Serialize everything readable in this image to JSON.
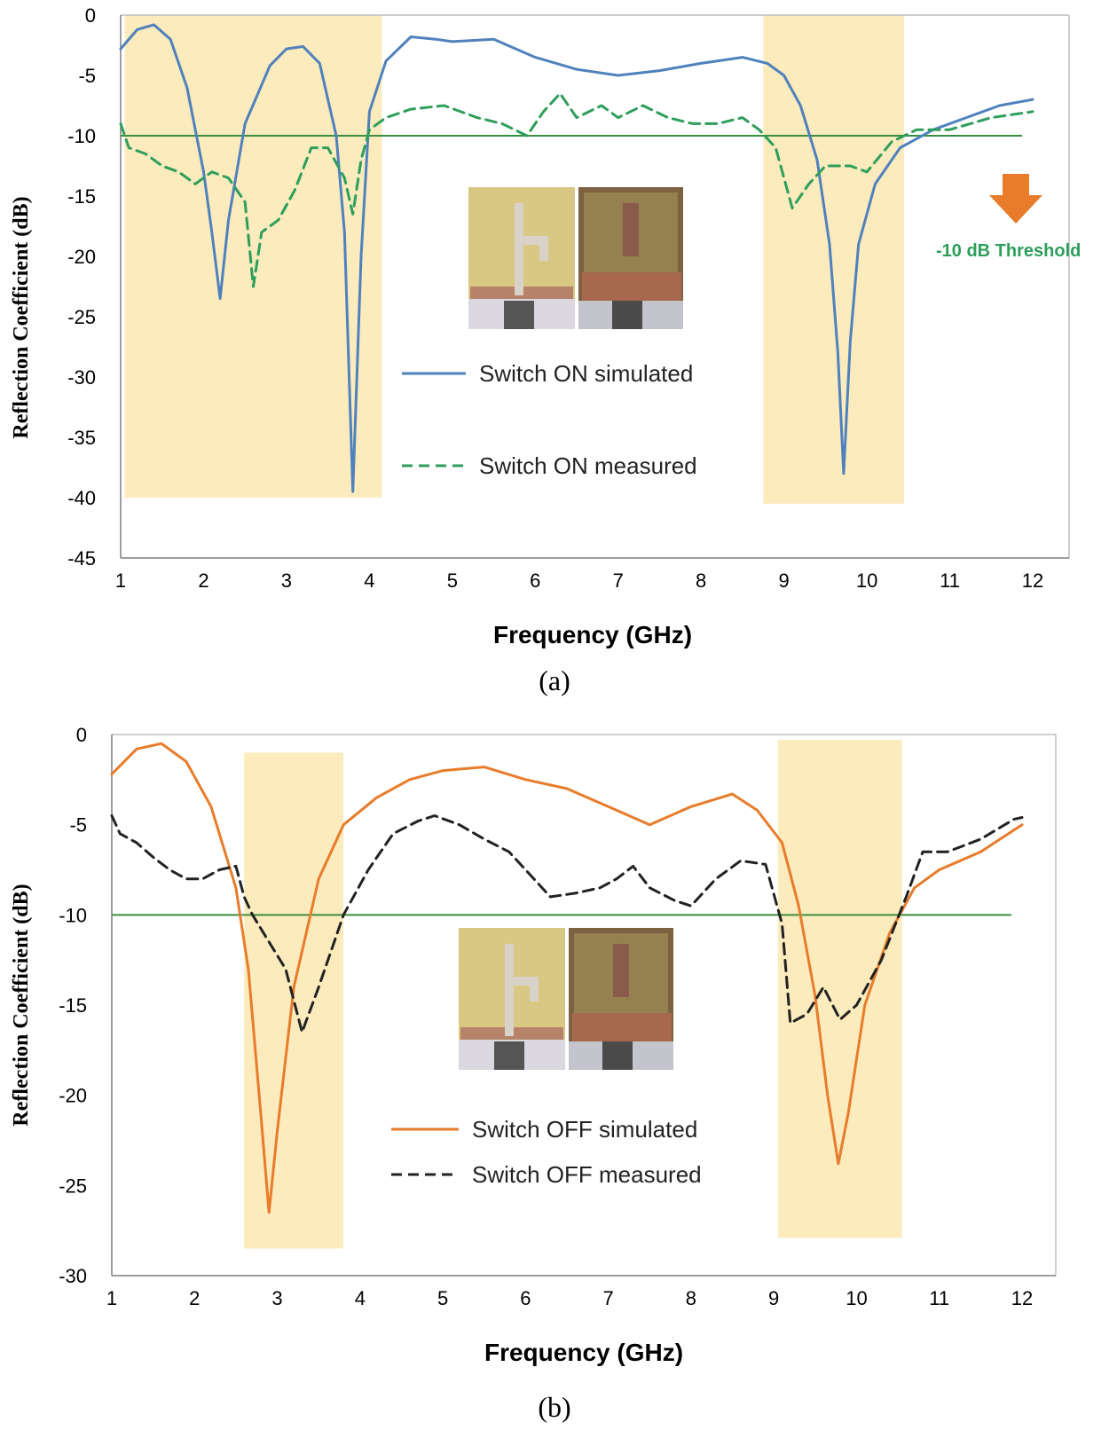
{
  "chart_data": [
    {
      "type": "line",
      "panel": "(a)",
      "xlabel": "Frequency (GHz)",
      "ylabel": "Reflection Coefficient (dB)",
      "xlim": [
        1,
        12
      ],
      "ylim": [
        -45,
        0
      ],
      "xticks": [
        1,
        2,
        3,
        4,
        5,
        6,
        7,
        8,
        9,
        10,
        11,
        12
      ],
      "yticks": [
        0,
        -5,
        -10,
        -15,
        -20,
        -25,
        -30,
        -35,
        -40,
        -45
      ],
      "threshold": -10,
      "threshold_label": "-10 dB Threshold",
      "bands": [
        {
          "x0": 1.05,
          "x1": 4.15,
          "y0": 0,
          "y1": -40
        },
        {
          "x0": 8.75,
          "x1": 10.45,
          "y0": 0,
          "y1": -40.5
        }
      ],
      "series": [
        {
          "name": "Switch ON simulated",
          "color": "#4f81bd",
          "dash": "solid",
          "x": [
            1.0,
            1.2,
            1.4,
            1.6,
            1.8,
            2.0,
            2.1,
            2.2,
            2.3,
            2.5,
            2.8,
            3.0,
            3.2,
            3.4,
            3.6,
            3.7,
            3.8,
            3.9,
            4.0,
            4.2,
            4.5,
            4.8,
            5.0,
            5.5,
            6.0,
            6.5,
            7.0,
            7.5,
            8.0,
            8.5,
            8.8,
            9.0,
            9.2,
            9.4,
            9.55,
            9.65,
            9.72,
            9.8,
            9.9,
            10.1,
            10.4,
            10.8,
            11.2,
            11.6,
            12.0
          ],
          "y": [
            -2.8,
            -1.2,
            -0.8,
            -2.0,
            -6.0,
            -13.0,
            -18.0,
            -23.5,
            -17.0,
            -9.0,
            -4.2,
            -2.8,
            -2.6,
            -4.0,
            -10.0,
            -18.0,
            -39.5,
            -20.0,
            -8.0,
            -3.8,
            -1.8,
            -2.0,
            -2.2,
            -2.0,
            -3.5,
            -4.5,
            -5.0,
            -4.6,
            -4.0,
            -3.5,
            -4.0,
            -5.0,
            -7.5,
            -12.0,
            -19.0,
            -28.0,
            -38.0,
            -27.0,
            -19.0,
            -14.0,
            -11.0,
            -9.5,
            -8.5,
            -7.5,
            -7.0
          ]
        },
        {
          "name": "Switch ON measured",
          "color": "#2e9e5b",
          "dash": "dashed",
          "x": [
            1.0,
            1.1,
            1.3,
            1.5,
            1.7,
            1.9,
            2.1,
            2.3,
            2.5,
            2.6,
            2.7,
            2.9,
            3.1,
            3.3,
            3.5,
            3.7,
            3.8,
            3.9,
            4.0,
            4.2,
            4.5,
            4.9,
            5.3,
            5.6,
            5.9,
            6.1,
            6.3,
            6.5,
            6.8,
            7.0,
            7.3,
            7.6,
            7.9,
            8.2,
            8.5,
            8.7,
            8.9,
            9.1,
            9.3,
            9.5,
            9.8,
            10.0,
            10.3,
            10.6,
            11.0,
            11.5,
            12.0
          ],
          "y": [
            -9.0,
            -11.0,
            -11.5,
            -12.5,
            -13.0,
            -14.0,
            -13.0,
            -13.5,
            -15.5,
            -22.5,
            -18.0,
            -17.0,
            -14.5,
            -11.0,
            -11.0,
            -13.5,
            -16.5,
            -12.0,
            -9.5,
            -8.5,
            -7.8,
            -7.5,
            -8.5,
            -9.0,
            -10.0,
            -8.0,
            -6.5,
            -8.5,
            -7.5,
            -8.5,
            -7.5,
            -8.5,
            -9.0,
            -9.0,
            -8.5,
            -9.5,
            -11.0,
            -16.0,
            -14.0,
            -12.5,
            -12.5,
            -13.0,
            -10.5,
            -9.5,
            -9.5,
            -8.5,
            -8.0
          ]
        }
      ]
    },
    {
      "type": "line",
      "panel": "(b)",
      "xlabel": "Frequency (GHz)",
      "ylabel": "Reflection Coefficient (dB)",
      "xlim": [
        1,
        12
      ],
      "ylim": [
        -30,
        0
      ],
      "xticks": [
        1,
        2,
        3,
        4,
        5,
        6,
        7,
        8,
        9,
        10,
        11,
        12
      ],
      "yticks": [
        0,
        -5,
        -10,
        -15,
        -20,
        -25,
        -30
      ],
      "threshold": -10,
      "bands": [
        {
          "x0": 2.6,
          "x1": 3.8,
          "y0": -1.0,
          "y1": -28.5
        },
        {
          "x0": 9.05,
          "x1": 10.55,
          "y0": -0.3,
          "y1": -27.9
        }
      ],
      "series": [
        {
          "name": "Switch OFF simulated",
          "color": "#e87c2a",
          "dash": "solid",
          "x": [
            1.0,
            1.3,
            1.6,
            1.9,
            2.2,
            2.5,
            2.65,
            2.8,
            2.9,
            3.0,
            3.2,
            3.5,
            3.8,
            4.2,
            4.6,
            5.0,
            5.5,
            6.0,
            6.5,
            7.0,
            7.5,
            8.0,
            8.5,
            8.8,
            9.1,
            9.3,
            9.5,
            9.65,
            9.78,
            9.9,
            10.1,
            10.4,
            10.7,
            11.0,
            11.5,
            12.0
          ],
          "y": [
            -2.2,
            -0.8,
            -0.5,
            -1.5,
            -4.0,
            -8.5,
            -13.0,
            -21.0,
            -26.5,
            -22.0,
            -14.0,
            -8.0,
            -5.0,
            -3.5,
            -2.5,
            -2.0,
            -1.8,
            -2.5,
            -3.0,
            -4.0,
            -5.0,
            -4.0,
            -3.3,
            -4.2,
            -6.0,
            -9.5,
            -14.5,
            -20.0,
            -23.8,
            -21.0,
            -15.0,
            -11.0,
            -8.5,
            -7.5,
            -6.5,
            -5.0
          ]
        },
        {
          "name": "Switch OFF measured",
          "color": "#222222",
          "dash": "dashed",
          "x": [
            1.0,
            1.1,
            1.3,
            1.5,
            1.7,
            1.9,
            2.1,
            2.3,
            2.5,
            2.6,
            2.7,
            2.9,
            3.1,
            3.3,
            3.5,
            3.8,
            4.1,
            4.4,
            4.7,
            4.9,
            5.2,
            5.5,
            5.8,
            6.0,
            6.3,
            6.6,
            6.9,
            7.1,
            7.3,
            7.5,
            7.8,
            8.0,
            8.3,
            8.6,
            8.9,
            9.1,
            9.2,
            9.4,
            9.6,
            9.8,
            10.0,
            10.3,
            10.6,
            10.8,
            11.1,
            11.5,
            11.9,
            12.0
          ],
          "y": [
            -4.5,
            -5.5,
            -6.0,
            -6.8,
            -7.5,
            -8.0,
            -8.0,
            -7.5,
            -7.3,
            -9.0,
            -10.0,
            -11.5,
            -13.0,
            -16.5,
            -14.0,
            -10.0,
            -7.5,
            -5.5,
            -4.8,
            -4.5,
            -5.0,
            -5.8,
            -6.5,
            -7.5,
            -9.0,
            -8.8,
            -8.5,
            -8.0,
            -7.3,
            -8.5,
            -9.2,
            -9.5,
            -8.0,
            -7.0,
            -7.2,
            -10.5,
            -16.0,
            -15.5,
            -14.0,
            -15.8,
            -15.0,
            -12.5,
            -9.0,
            -6.5,
            -6.5,
            -5.8,
            -4.7,
            -4.6
          ]
        }
      ]
    }
  ],
  "panel_a": {
    "caption": "(a)",
    "legend_sim": "Switch ON simulated",
    "legend_meas": "Switch ON measured",
    "threshold_label": "-10 dB Threshold",
    "arrow_color": "#e87c2a",
    "band_color": "#fcebbd",
    "threshold_color": "#3a8f3f"
  },
  "panel_b": {
    "caption": "(b)",
    "legend_sim": "Switch OFF simulated",
    "legend_meas": "Switch OFF measured",
    "band_color": "#fcebbd",
    "threshold_color": "#3a8f3f"
  }
}
